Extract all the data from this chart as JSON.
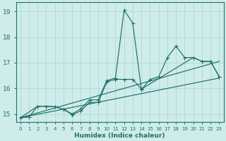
{
  "xlabel": "Humidex (Indice chaleur)",
  "xlim": [
    -0.5,
    23.5
  ],
  "ylim": [
    14.7,
    19.35
  ],
  "xticks": [
    0,
    1,
    2,
    3,
    4,
    5,
    6,
    7,
    8,
    9,
    10,
    11,
    12,
    13,
    14,
    15,
    16,
    17,
    18,
    19,
    20,
    21,
    22,
    23
  ],
  "yticks": [
    15,
    16,
    17,
    18,
    19
  ],
  "bg_color": "#ceecea",
  "grid_color": "#aed8d4",
  "line_color": "#217068",
  "line1_x": [
    0,
    1,
    2,
    3,
    4,
    5,
    6,
    7,
    8,
    9,
    10,
    11,
    12,
    13,
    14,
    15,
    16,
    17,
    18,
    19,
    20,
    21,
    22,
    23
  ],
  "line1_y": [
    14.85,
    14.88,
    15.3,
    15.3,
    15.28,
    15.18,
    15.0,
    15.2,
    15.55,
    15.55,
    16.3,
    16.4,
    19.05,
    18.55,
    15.95,
    16.35,
    16.45,
    17.2,
    17.65,
    17.2,
    17.2,
    17.05,
    17.05,
    16.45
  ],
  "line2_x": [
    0,
    2,
    3,
    4,
    5,
    6,
    7,
    8,
    9,
    10,
    11,
    12,
    13,
    14,
    20,
    21,
    22,
    23
  ],
  "line2_y": [
    14.85,
    15.3,
    15.3,
    15.28,
    15.18,
    14.97,
    15.12,
    15.45,
    15.45,
    16.25,
    16.35,
    16.35,
    16.35,
    15.97,
    17.2,
    17.05,
    17.05,
    16.45
  ],
  "line3_x": [
    0,
    23
  ],
  "line3_y": [
    14.85,
    16.4
  ],
  "line4_x": [
    0,
    23
  ],
  "line4_y": [
    14.85,
    17.05
  ]
}
